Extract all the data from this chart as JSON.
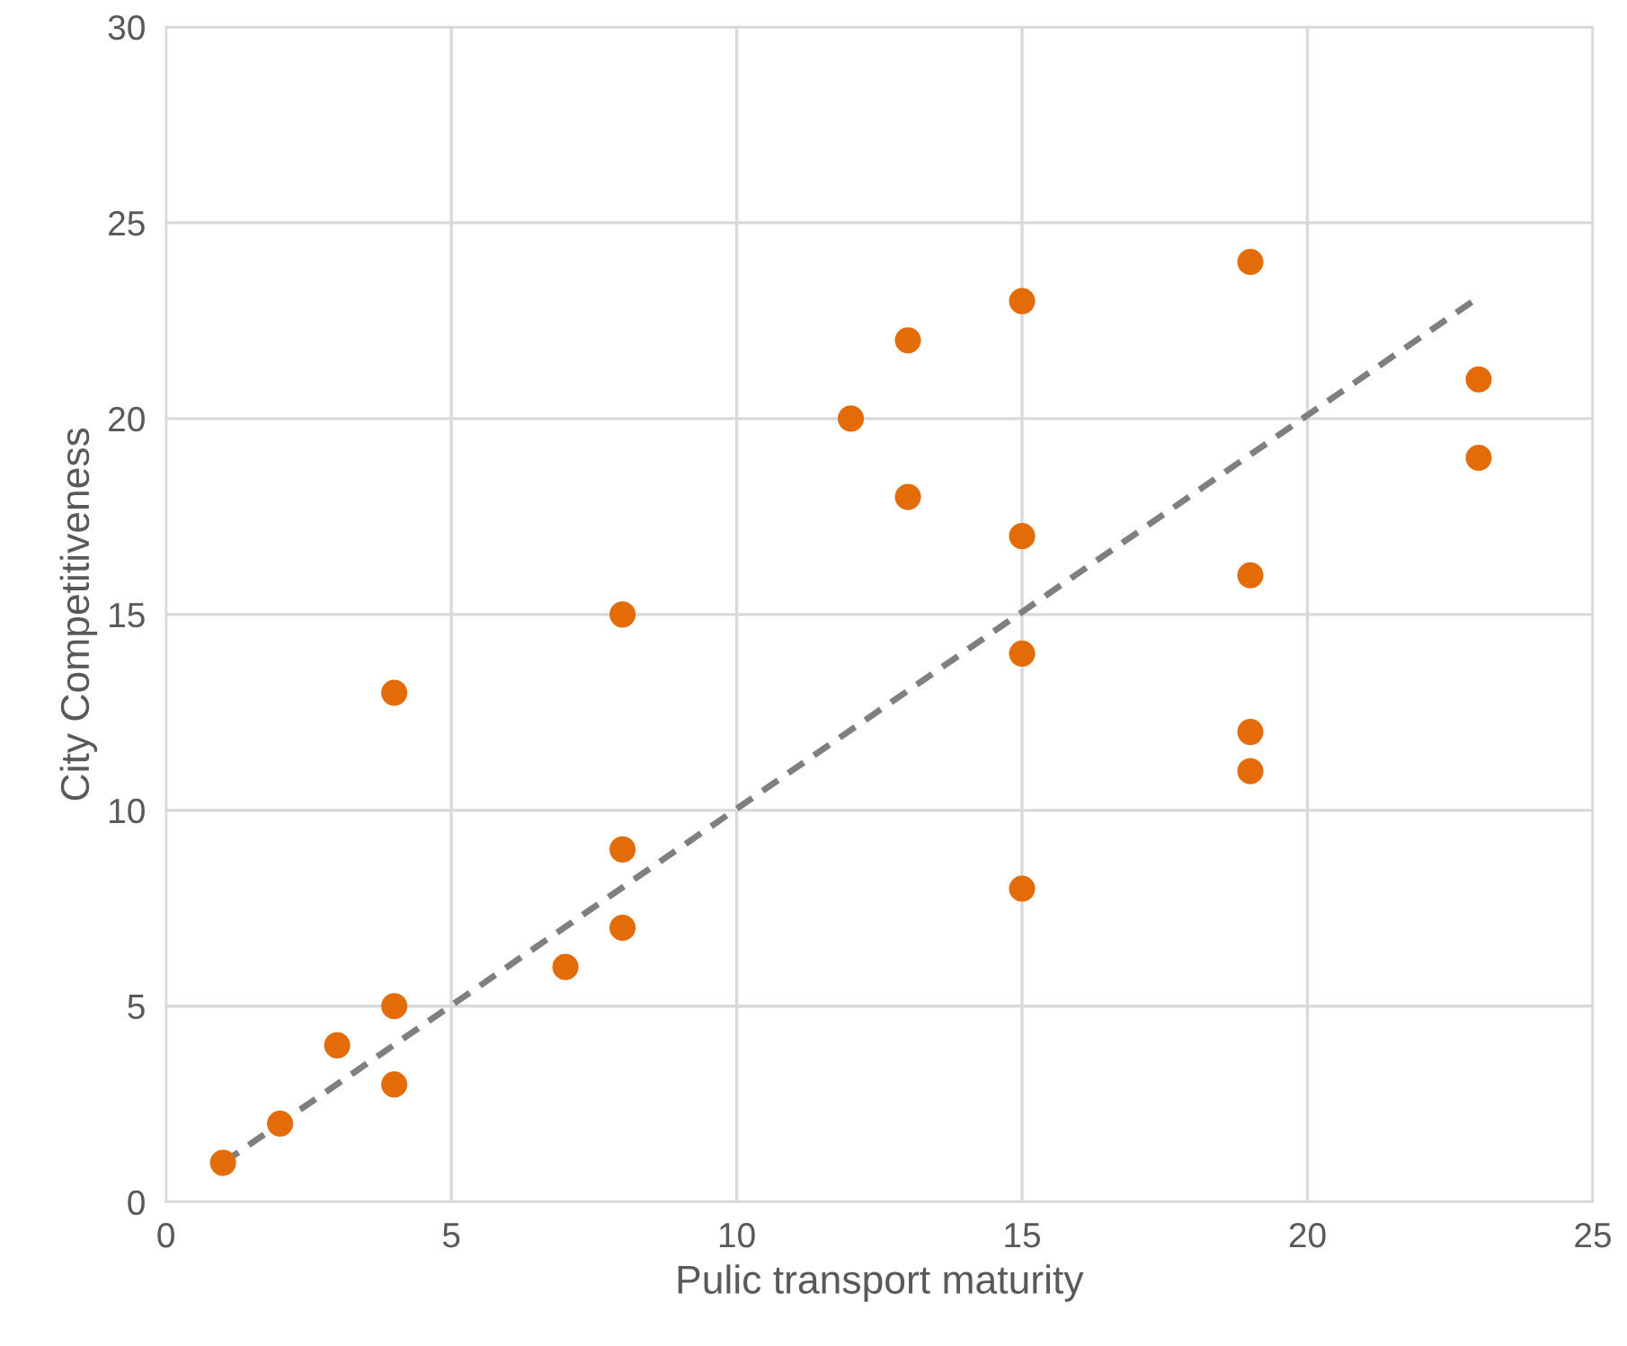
{
  "chart_data": {
    "type": "scatter",
    "xlabel": "Pulic transport maturity",
    "ylabel": "City Competitiveness",
    "xlim": [
      0,
      25
    ],
    "xticks": [
      0,
      5,
      10,
      15,
      20,
      25
    ],
    "ylim": [
      0,
      30
    ],
    "yticks": [
      0,
      5,
      10,
      15,
      20,
      25,
      30
    ],
    "grid": true,
    "marker": "circle",
    "legend": false,
    "series": [
      {
        "color": "#e36c09",
        "x": [
          1,
          2,
          3,
          4,
          4,
          4,
          7,
          8,
          8,
          8,
          12,
          13,
          13,
          15,
          15,
          15,
          15,
          19,
          19,
          19,
          19,
          23,
          23
        ],
        "values": [
          1,
          2,
          4,
          5,
          3,
          13,
          6,
          7,
          9,
          15,
          20,
          22,
          18,
          23,
          17,
          14,
          8,
          24,
          16,
          12,
          11,
          21,
          19
        ]
      },
      {
        "type": "line",
        "color": "#7f7f7f",
        "line_style": "dashed",
        "marker": "none",
        "x": [
          1,
          23
        ],
        "values": [
          1.0,
          23.1
        ]
      }
    ]
  }
}
